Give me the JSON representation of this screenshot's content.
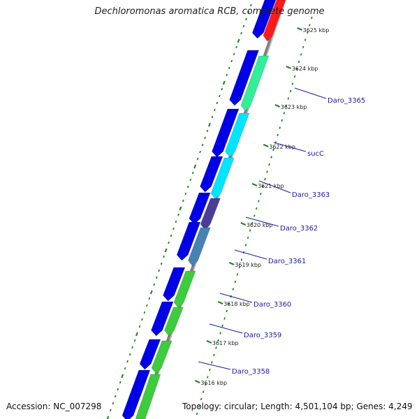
{
  "title": "Dechloromonas aromatica RCB, complete genome",
  "footer": {
    "accession": "Accession: NC_007298",
    "summary": "Topology: circular; Length: 4,501,104 bp; Genes: 4,249"
  },
  "colors": {
    "forward_strand": "#0000e6",
    "backbone": "#808080",
    "dot_track": "#1f8a1f",
    "tick": "#1f8a1f",
    "gene_label": "#1a1aa8"
  },
  "ticks": [
    {
      "label": "3625 kbp"
    },
    {
      "label": "3624 kbp"
    },
    {
      "label": "3623 kbp"
    },
    {
      "label": "3622 kbp"
    },
    {
      "label": "3621 kbp"
    },
    {
      "label": "3620 kbp"
    },
    {
      "label": "3619 kbp"
    },
    {
      "label": "3618 kbp"
    },
    {
      "label": "3617 kbp"
    },
    {
      "label": "3616 kbp"
    }
  ],
  "genes": [
    {
      "label": "Daro_3365",
      "color": "#33ee99"
    },
    {
      "label": "sucC",
      "color": "#00e5ff"
    },
    {
      "label": "Daro_3363",
      "color": "#00e5ff"
    },
    {
      "label": "Daro_3362",
      "color": "#4a3d99"
    },
    {
      "label": "Daro_3361",
      "color": "#4682b4"
    },
    {
      "label": "Daro_3360",
      "color": "#3dcc3d"
    },
    {
      "label": "Daro_3359",
      "color": "#3dcc3d"
    },
    {
      "label": "Daro_3358",
      "color": "#3dcc3d"
    }
  ]
}
